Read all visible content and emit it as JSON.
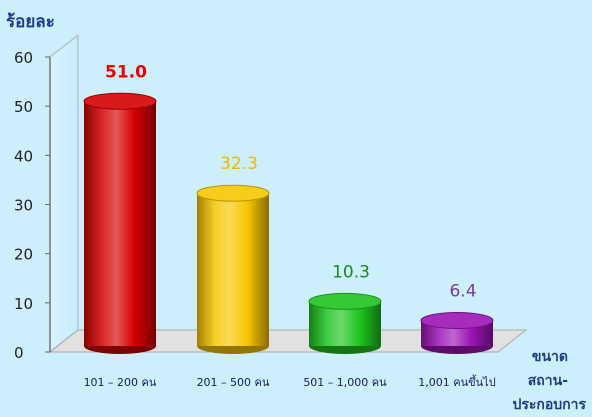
{
  "chart_data": {
    "type": "bar",
    "ylabel": "ร้อยละ",
    "xlabel": "ขนาด\nสถาน-\nประกอบการ",
    "ylim": [
      0,
      60
    ],
    "yticks": [
      0,
      10,
      20,
      30,
      40,
      50,
      60
    ],
    "categories": [
      "101 – 200 คน",
      "201 – 500 คน",
      "501 – 1,000 คน",
      "1,001 คนขึ้นไป"
    ],
    "values": [
      51.0,
      32.3,
      10.3,
      6.4
    ],
    "value_labels": [
      "51.0",
      "32.3",
      "10.3",
      "6.4"
    ],
    "colors": [
      "#d40000",
      "#f7c600",
      "#1fc41f",
      "#9b14b4"
    ],
    "label_colors": [
      "#ee0000",
      "#f2b705",
      "#1a8c1a",
      "#7a3a9a"
    ],
    "grid": false,
    "legend": "none"
  }
}
